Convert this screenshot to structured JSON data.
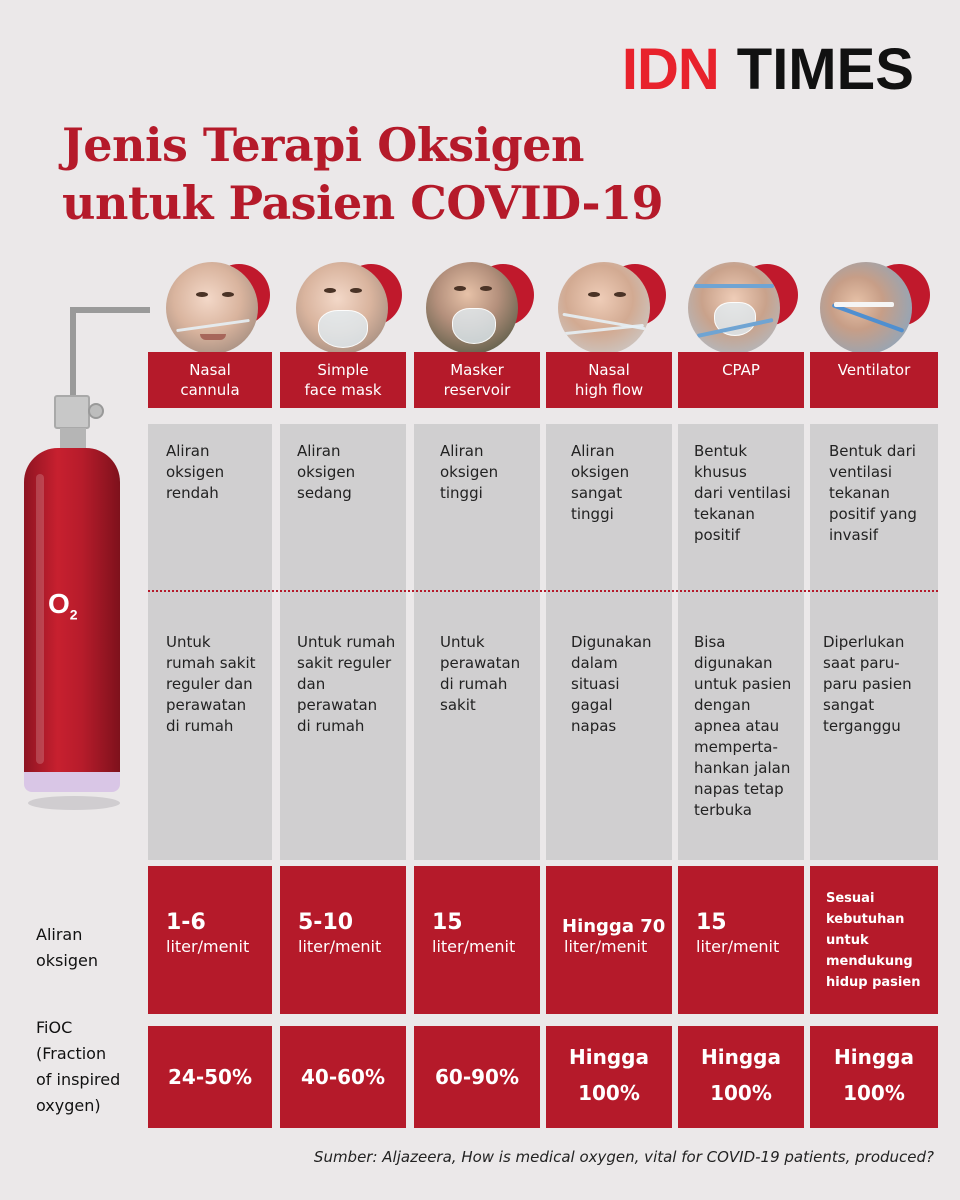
{
  "brand": {
    "idn": "IDN",
    "times": "TIMES"
  },
  "title": {
    "line1": "Jenis Terapi Oksigen",
    "line2": "untuk Pasien COVID-19"
  },
  "tank_label": {
    "base": "O",
    "sub": "2"
  },
  "row_labels": {
    "flow_line1": "Aliran",
    "flow_line2": "oksigen",
    "fio_line1": "FiOC",
    "fio_line2": "(Fraction",
    "fio_line3": "of inspired",
    "fio_line4": "oxygen)"
  },
  "therapies": [
    {
      "name_line1": "Nasal",
      "name_line2": "cannula",
      "desc": [
        "Aliran",
        "oksigen",
        "rendah"
      ],
      "usage": [
        "Untuk",
        "rumah sakit",
        "reguler dan",
        "perawatan",
        "di rumah"
      ],
      "flow_num": "1-6",
      "flow_unit": "liter/menit",
      "fio_line1": "24-50%",
      "fio_line2": ""
    },
    {
      "name_line1": "Simple",
      "name_line2": "face mask",
      "desc": [
        "Aliran",
        "oksigen",
        "sedang"
      ],
      "usage": [
        "Untuk rumah",
        "sakit reguler",
        "dan",
        "perawatan",
        "di rumah"
      ],
      "flow_num": "5-10",
      "flow_unit": "liter/menit",
      "fio_line1": "40-60%",
      "fio_line2": ""
    },
    {
      "name_line1": "Masker",
      "name_line2": "reservoir",
      "desc": [
        "Aliran",
        "oksigen",
        "tinggi"
      ],
      "usage": [
        "Untuk",
        "perawatan",
        "di rumah",
        "sakit"
      ],
      "flow_num": "15",
      "flow_unit": "liter/menit",
      "fio_line1": "60-90%",
      "fio_line2": ""
    },
    {
      "name_line1": "Nasal",
      "name_line2": "high flow",
      "desc": [
        "Aliran",
        "oksigen",
        "sangat",
        "tinggi"
      ],
      "usage": [
        "Digunakan",
        "dalam",
        "situasi",
        "gagal",
        "napas"
      ],
      "flow_num": "Hingga 70",
      "flow_unit": "liter/menit",
      "fio_line1": "Hingga",
      "fio_line2": "100%"
    },
    {
      "name_line1": "CPAP",
      "name_line2": "",
      "desc": [
        "Bentuk",
        "khusus",
        "dari ventilasi",
        "tekanan",
        "positif"
      ],
      "usage": [
        "Bisa",
        "digunakan",
        "untuk pasien",
        "dengan",
        "apnea atau",
        "memperta-",
        "hankan jalan",
        "napas tetap",
        "terbuka"
      ],
      "flow_num": "15",
      "flow_unit": "liter/menit",
      "fio_line1": "Hingga",
      "fio_line2": "100%"
    },
    {
      "name_line1": "Ventilator",
      "name_line2": "",
      "desc": [
        "Bentuk dari",
        "ventilasi",
        "tekanan",
        "positif yang",
        "invasif"
      ],
      "usage": [
        "Diperlukan",
        "saat paru-",
        "paru pasien",
        "sangat",
        "terganggu"
      ],
      "flow_small": [
        "Sesuai",
        "kebutuhan",
        "untuk",
        "mendukung",
        "hidup pasien"
      ],
      "fio_line1": "Hingga",
      "fio_line2": "100%"
    }
  ],
  "source": "Sumber: Aljazeera, How is medical oxygen, vital for COVID-19 patients, produced?",
  "colors": {
    "primary_red": "#b51a2a",
    "logo_red": "#e8222c",
    "background": "#ebe8e9",
    "panel_gray": "#d0cfd0"
  }
}
